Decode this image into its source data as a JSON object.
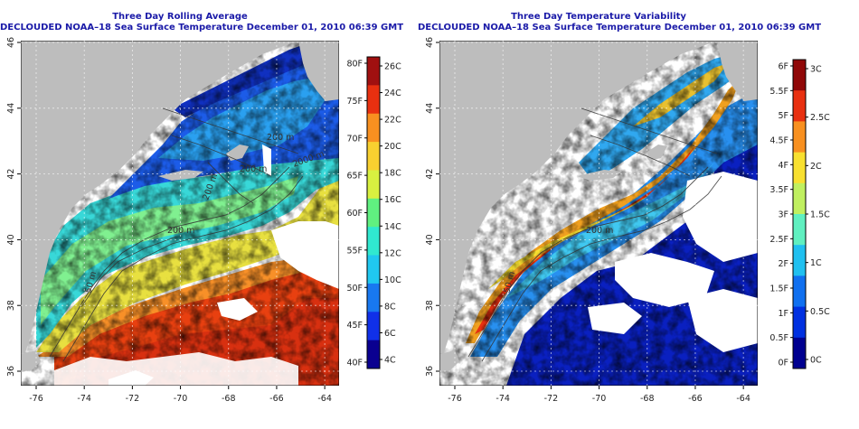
{
  "panels": [
    {
      "title_line1": "Three Day Rolling Average",
      "title_line2": "DECLOUDED NOAA–18 Sea Surface Temperature December 01, 2010 06:39 GMT",
      "colorbar": {
        "colors": [
          "#0a0090",
          "#1030e8",
          "#1878f0",
          "#20c8f0",
          "#30e8d0",
          "#60f080",
          "#d8f040",
          "#f8d030",
          "#f89020",
          "#e83010",
          "#a01010"
        ],
        "left_labels": [
          "80F",
          "75F",
          "70F",
          "65F",
          "60F",
          "55F",
          "50F",
          "45F",
          "40F"
        ],
        "right_labels": [
          "26C",
          "24C",
          "22C",
          "20C",
          "18C",
          "16C",
          "14C",
          "12C",
          "10C",
          "8C",
          "6C",
          "4C"
        ]
      },
      "contour_labels": [
        "200 m",
        "200 m",
        "200 m",
        "2000 m",
        "200 m",
        "50 m",
        "200 m"
      ]
    },
    {
      "title_line1": "Three Day Temperature Variability",
      "title_line2": "DECLOUDED NOAA–18 Sea Surface Temperature December 01, 2010 06:39 GMT",
      "colorbar": {
        "colors": [
          "#000090",
          "#0030e0",
          "#1070f0",
          "#20c0f0",
          "#60f0c0",
          "#c0f060",
          "#f8e030",
          "#f89020",
          "#e83010",
          "#900808"
        ],
        "left_labels": [
          "6F",
          "5.5F",
          "5F",
          "4.5F",
          "4F",
          "3.5F",
          "3F",
          "2.5F",
          "2F",
          "1.5F",
          "1F",
          "0.5F",
          "0F"
        ],
        "right_labels": [
          "3C",
          "2.5C",
          "2C",
          "1.5C",
          "1C",
          "0.5C",
          "0C"
        ]
      },
      "contour_labels": [
        "200 m",
        "50 m"
      ]
    }
  ],
  "axes": {
    "x_ticks": [
      "-76",
      "-74",
      "-72",
      "-70",
      "-68",
      "-66",
      "-64"
    ],
    "y_ticks": [
      "46",
      "44",
      "42",
      "40",
      "38",
      "36"
    ]
  }
}
